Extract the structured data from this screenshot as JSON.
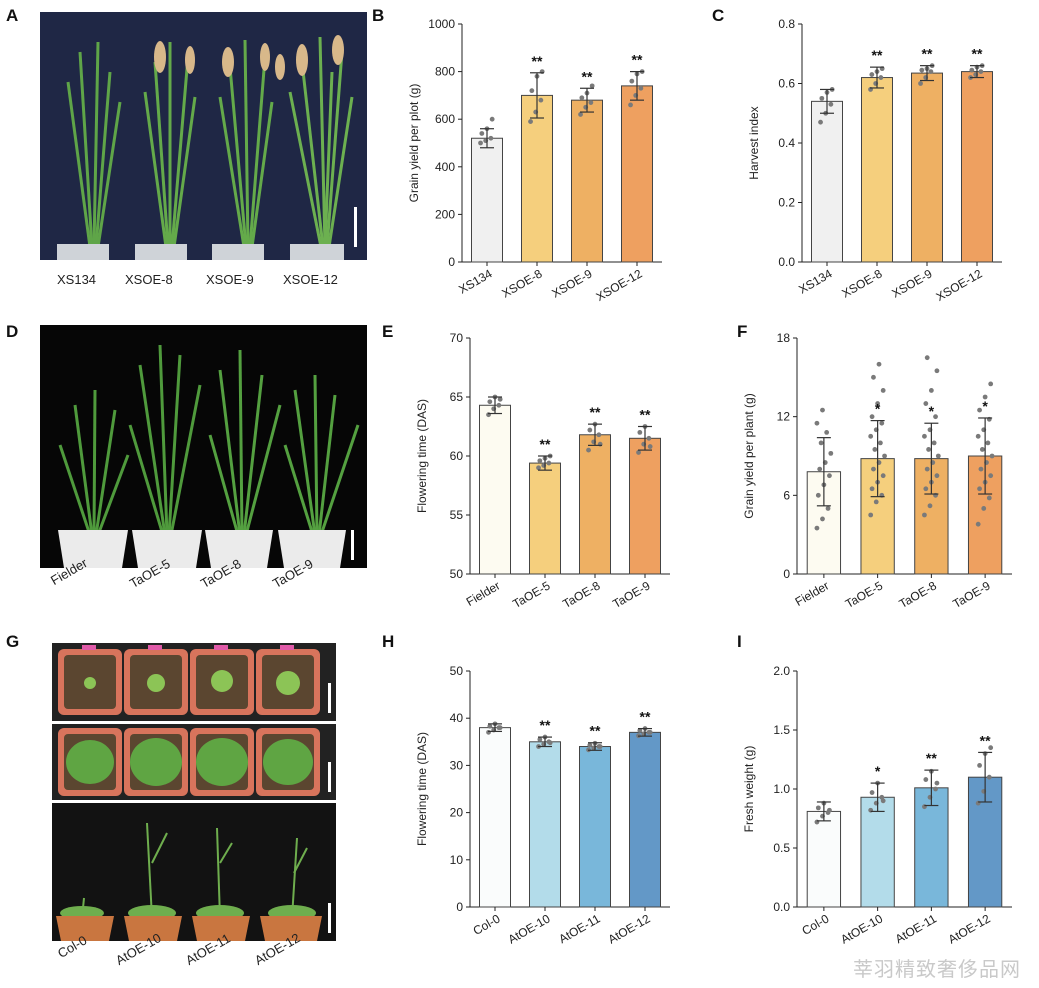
{
  "panels": {
    "A": {
      "letter": "A",
      "labels": [
        "XS134",
        "XSOE-8",
        "XSOE-9",
        "XSOE-12"
      ]
    },
    "D": {
      "letter": "D",
      "labels": [
        "Fielder",
        "TaOE-5",
        "TaOE-8",
        "TaOE-9"
      ]
    },
    "G": {
      "letter": "G",
      "labels": [
        "Col-0",
        "AtOE-10",
        "AtOE-11",
        "AtOE-12"
      ]
    },
    "B": {
      "letter": "B"
    },
    "C": {
      "letter": "C"
    },
    "E": {
      "letter": "E"
    },
    "F": {
      "letter": "F"
    },
    "H": {
      "letter": "H"
    },
    "I": {
      "letter": "I"
    }
  },
  "colors": {
    "gray": "#f0f0f0",
    "cream": "#fdfbf1",
    "yellow": "#f5cf7d",
    "lightorange": "#eeb063",
    "orange": "#eea060",
    "white": "#fafcfc",
    "lightblue": "#b3dcea",
    "midblue": "#79b7da",
    "darkblue": "#6398c7"
  },
  "watermark": "莘羽精致奢侈品网",
  "chart_data": [
    {
      "id": "B",
      "type": "bar",
      "ylabel": "Grain yield per plot (g)",
      "categories": [
        "XS134",
        "XSOE-8",
        "XSOE-9",
        "XSOE-12"
      ],
      "values": [
        520,
        700,
        680,
        740
      ],
      "errors": [
        40,
        95,
        50,
        60
      ],
      "significance": [
        "",
        "**",
        "**",
        "**"
      ],
      "colors": [
        "gray",
        "yellow",
        "lightorange",
        "orange"
      ],
      "ylim": [
        0,
        1000
      ],
      "yticks": [
        0,
        200,
        400,
        600,
        800,
        1000
      ],
      "ytick_labels": [
        "0",
        "200",
        "400",
        "600",
        "800",
        "1000"
      ],
      "points": [
        [
          500,
          510,
          520,
          540,
          560,
          600
        ],
        [
          590,
          630,
          680,
          720,
          780,
          800
        ],
        [
          620,
          650,
          670,
          690,
          710,
          740
        ],
        [
          660,
          700,
          730,
          760,
          790,
          800
        ]
      ]
    },
    {
      "id": "C",
      "type": "bar",
      "ylabel": "Harvest index",
      "categories": [
        "XS134",
        "XSOE-8",
        "XSOE-9",
        "XSOE-12"
      ],
      "values": [
        0.54,
        0.62,
        0.635,
        0.64
      ],
      "errors": [
        0.04,
        0.035,
        0.025,
        0.02
      ],
      "significance": [
        "",
        "**",
        "**",
        "**"
      ],
      "colors": [
        "gray",
        "yellow",
        "lightorange",
        "orange"
      ],
      "ylim": [
        0,
        0.8
      ],
      "yticks": [
        0,
        0.2,
        0.4,
        0.6,
        0.8
      ],
      "ytick_labels": [
        "0.0",
        "0.2",
        "0.4",
        "0.6",
        "0.8"
      ],
      "points": [
        [
          0.47,
          0.5,
          0.53,
          0.55,
          0.57,
          0.58
        ],
        [
          0.58,
          0.6,
          0.62,
          0.63,
          0.64,
          0.65
        ],
        [
          0.6,
          0.62,
          0.64,
          0.645,
          0.65,
          0.66
        ],
        [
          0.62,
          0.63,
          0.64,
          0.645,
          0.655,
          0.66
        ]
      ]
    },
    {
      "id": "E",
      "type": "bar",
      "ylabel": "Flowering time (DAS)",
      "categories": [
        "Fielder",
        "TaOE-5",
        "TaOE-8",
        "TaOE-9"
      ],
      "values": [
        64.3,
        59.4,
        61.8,
        61.5
      ],
      "errors": [
        0.7,
        0.6,
        0.9,
        1.0
      ],
      "significance": [
        "",
        "**",
        "**",
        "**"
      ],
      "colors": [
        "cream",
        "yellow",
        "lightorange",
        "orange"
      ],
      "ylim": [
        50,
        70
      ],
      "yticks": [
        50,
        55,
        60,
        65,
        70
      ],
      "ytick_labels": [
        "50",
        "55",
        "60",
        "65",
        "70"
      ],
      "points": [
        [
          63.5,
          64,
          64.3,
          64.6,
          65,
          64.8
        ],
        [
          59,
          59.2,
          59.4,
          59.6,
          59.8,
          60
        ],
        [
          60.5,
          61.2,
          61.8,
          62.2,
          62.7,
          61
        ],
        [
          60.3,
          61,
          61.5,
          62,
          62.5,
          60.8
        ]
      ]
    },
    {
      "id": "F",
      "type": "bar",
      "ylabel": "Grain yield per plant (g)",
      "categories": [
        "Fielder",
        "TaOE-5",
        "TaOE-8",
        "TaOE-9"
      ],
      "values": [
        7.8,
        8.8,
        8.8,
        9.0
      ],
      "errors": [
        2.6,
        2.9,
        2.7,
        2.9
      ],
      "significance": [
        "",
        "*",
        "*",
        "*"
      ],
      "colors": [
        "cream",
        "yellow",
        "lightorange",
        "orange"
      ],
      "ylim": [
        0,
        18
      ],
      "yticks": [
        0,
        6,
        12,
        18
      ],
      "ytick_labels": [
        "0",
        "6",
        "12",
        "18"
      ],
      "points": [
        [
          3.5,
          4.2,
          5,
          6,
          6.8,
          7.5,
          8,
          8.5,
          9.2,
          10,
          10.8,
          11.5,
          12.5
        ],
        [
          4.5,
          5.5,
          6,
          6.5,
          7,
          7.5,
          8,
          8.5,
          9,
          9.5,
          10,
          10.5,
          11,
          11.5,
          12,
          13,
          14,
          15,
          16
        ],
        [
          4.5,
          5.2,
          6,
          6.5,
          7,
          7.5,
          8,
          8.5,
          9,
          9.5,
          10,
          10.5,
          11,
          12,
          13,
          14,
          15.5,
          16.5
        ],
        [
          3.8,
          5,
          5.8,
          6.5,
          7,
          7.5,
          8,
          8.5,
          9,
          9.5,
          10,
          10.5,
          11,
          11.8,
          12.5,
          13.5,
          14.5
        ]
      ]
    },
    {
      "id": "H",
      "type": "bar",
      "ylabel": "Flowering time (DAS)",
      "categories": [
        "Col-0",
        "AtOE-10",
        "AtOE-11",
        "AtOE-12"
      ],
      "values": [
        38,
        35,
        34,
        37
      ],
      "errors": [
        0.8,
        1.0,
        0.8,
        0.8
      ],
      "significance": [
        "",
        "**",
        "**",
        "**"
      ],
      "colors": [
        "white",
        "lightblue",
        "midblue",
        "darkblue"
      ],
      "ylim": [
        0,
        50
      ],
      "yticks": [
        0,
        10,
        20,
        30,
        40,
        50
      ],
      "ytick_labels": [
        "0",
        "10",
        "20",
        "30",
        "40",
        "50"
      ],
      "points": [
        [
          37,
          37.5,
          38,
          38.3,
          38.8,
          38
        ],
        [
          34,
          34.5,
          35,
          35.5,
          36,
          34.8
        ],
        [
          33.3,
          33.7,
          34,
          34.3,
          34.7,
          34
        ],
        [
          36.3,
          36.7,
          37,
          37.4,
          37.8,
          37
        ]
      ]
    },
    {
      "id": "I",
      "type": "bar",
      "ylabel": "Fresh weight (g)",
      "categories": [
        "Col-0",
        "AtOE-10",
        "AtOE-11",
        "AtOE-12"
      ],
      "values": [
        0.81,
        0.93,
        1.01,
        1.1
      ],
      "errors": [
        0.08,
        0.12,
        0.15,
        0.21
      ],
      "significance": [
        "",
        "*",
        "**",
        "**"
      ],
      "colors": [
        "white",
        "lightblue",
        "midblue",
        "darkblue"
      ],
      "ylim": [
        0,
        2.0
      ],
      "yticks": [
        0,
        0.5,
        1.0,
        1.5,
        2.0
      ],
      "ytick_labels": [
        "0.0",
        "0.5",
        "1.0",
        "1.5",
        "2.0"
      ],
      "points": [
        [
          0.72,
          0.77,
          0.8,
          0.84,
          0.88,
          0.82
        ],
        [
          0.82,
          0.88,
          0.93,
          0.97,
          1.05,
          0.9
        ],
        [
          0.85,
          0.93,
          1.0,
          1.08,
          1.15,
          1.05
        ],
        [
          0.88,
          0.98,
          1.1,
          1.2,
          1.3,
          1.35
        ]
      ]
    }
  ]
}
